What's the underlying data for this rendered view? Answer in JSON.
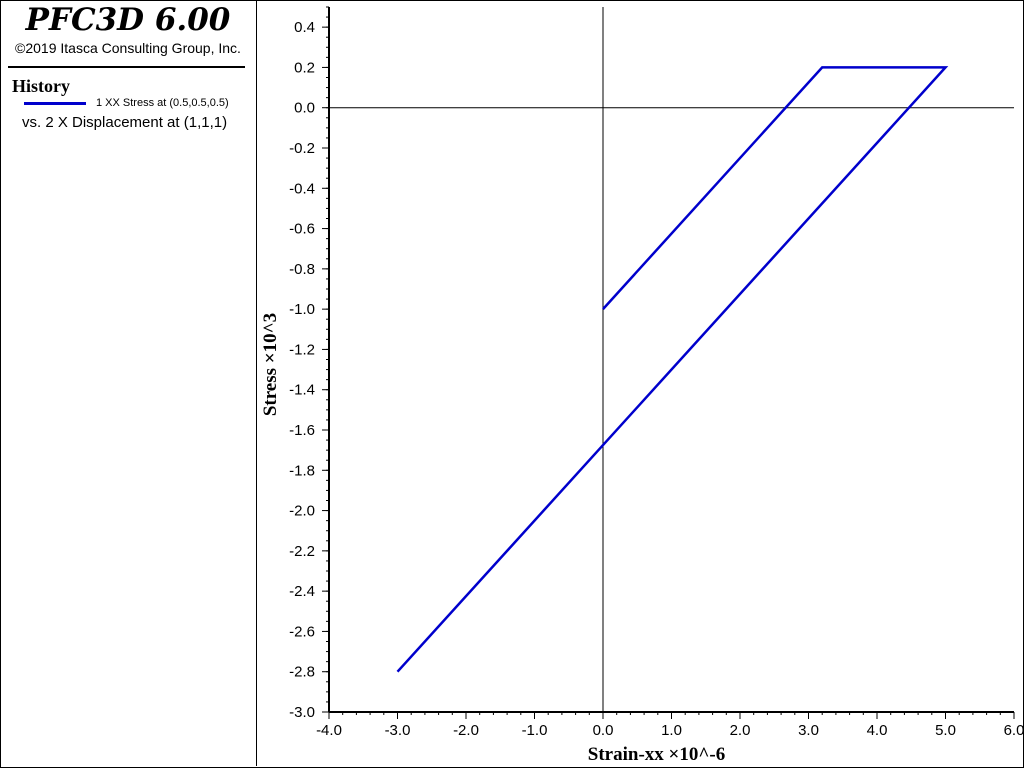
{
  "header": {
    "app_title": "PFC3D 6.00",
    "copyright": "©2019 Itasca Consulting Group, Inc."
  },
  "legend": {
    "section_title": "History",
    "series_label": "1 XX Stress at (0.5,0.5,0.5)",
    "vs_label": "vs. 2 X Displacement at (1,1,1)",
    "series_color": "#0000cc"
  },
  "chart_data": {
    "type": "line",
    "title": "",
    "xlabel": "Strain-xx ×10^-6",
    "ylabel": "Stress ×10^3",
    "xlim": [
      -4.0,
      6.0
    ],
    "ylim": [
      -3.0,
      0.5
    ],
    "xticks": [
      "-4.0",
      "-3.0",
      "-2.0",
      "-1.0",
      "0.0",
      "1.0",
      "2.0",
      "3.0",
      "4.0",
      "5.0",
      "6.0"
    ],
    "yticks": [
      "0.4",
      "0.2",
      "0.0",
      "-0.2",
      "-0.4",
      "-0.6",
      "-0.8",
      "-1.0",
      "-1.2",
      "-1.4",
      "-1.6",
      "-1.8",
      "-2.0",
      "-2.2",
      "-2.4",
      "-2.6",
      "-2.8",
      "-3.0"
    ],
    "grid": false,
    "series": [
      {
        "name": "1 XX Stress at (0.5,0.5,0.5)",
        "color": "#0000cc",
        "x": [
          0.0,
          3.2,
          5.0,
          -3.0
        ],
        "y": [
          -1.0,
          0.2,
          0.2,
          -2.8
        ]
      }
    ]
  }
}
